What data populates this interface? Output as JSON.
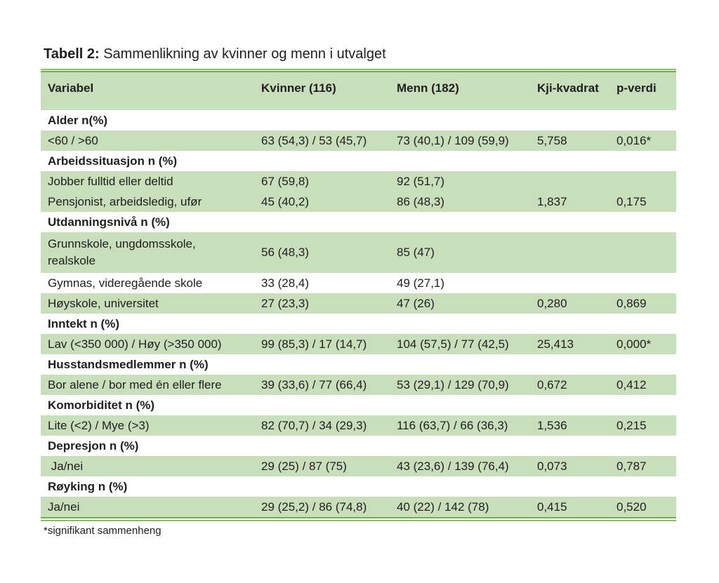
{
  "page": {
    "title_label": "Tabell 2:",
    "title_text": " Sammenlikning av kvinner og menn i utvalget",
    "footnote": "*signifikant sammenheng"
  },
  "colors": {
    "row_green": "#c9dfbc",
    "rule_green_dark": "#70ad47",
    "rule_green_light": "#8ac065",
    "text": "#202020"
  },
  "table": {
    "columns": [
      "Variabel",
      "Kvinner (116)",
      "Menn (182)",
      "Kji-kvadrat",
      "p-verdi"
    ],
    "rows": [
      {
        "type": "section",
        "label": "Alder n(%)"
      },
      {
        "type": "data",
        "shaded": true,
        "tall": false,
        "cells": [
          "<60 / >60",
          "63 (54,3) / 53 (45,7)",
          "73 (40,1) / 109 (59,9)",
          "5,758",
          "0,016*"
        ]
      },
      {
        "type": "section",
        "label": "Arbeidssituasjon n (%)"
      },
      {
        "type": "data",
        "shaded": true,
        "tall": false,
        "cells": [
          "Jobber fulltid eller deltid",
          "67 (59,8)",
          "92 (51,7)",
          "",
          ""
        ]
      },
      {
        "type": "data",
        "shaded": true,
        "tall": false,
        "cells": [
          "Pensjonist, arbeidsledig, ufør",
          "45 (40,2)",
          "86 (48,3)",
          "1,837",
          "0,175"
        ]
      },
      {
        "type": "section",
        "label": "Utdanningsnivå n (%)"
      },
      {
        "type": "data",
        "shaded": true,
        "tall": true,
        "cells": [
          "Grunnskole, ungdomsskole,\nrealskole",
          "56 (48,3)",
          "85 (47)",
          "",
          ""
        ]
      },
      {
        "type": "data",
        "shaded": false,
        "tall": false,
        "cells": [
          "Gymnas, videregående skole",
          "33 (28,4)",
          "49 (27,1)",
          "",
          ""
        ]
      },
      {
        "type": "data",
        "shaded": true,
        "tall": false,
        "cells": [
          "Høyskole, universitet",
          "27 (23,3)",
          "47 (26)",
          "0,280",
          "0,869"
        ]
      },
      {
        "type": "section",
        "label": "Inntekt n (%)"
      },
      {
        "type": "data",
        "shaded": true,
        "tall": false,
        "cells": [
          "Lav (<350 000) / Høy (>350 000)",
          "99 (85,3) / 17 (14,7)",
          "104 (57,5) / 77 (42,5)",
          "25,413",
          "0,000*"
        ]
      },
      {
        "type": "section",
        "label": "Husstandsmedlemmer n (%)"
      },
      {
        "type": "data",
        "shaded": true,
        "tall": false,
        "cells": [
          "Bor alene / bor med én eller flere",
          "39 (33,6) / 77 (66,4)",
          "53 (29,1) / 129 (70,9)",
          "0,672",
          "0,412"
        ]
      },
      {
        "type": "section",
        "label": "Komorbiditet n (%)"
      },
      {
        "type": "data",
        "shaded": true,
        "tall": false,
        "cells": [
          "Lite (<2) / Mye (>3)",
          "82 (70,7) / 34 (29,3)",
          "116 (63,7) / 66 (36,3)",
          "1,536",
          "0,215"
        ]
      },
      {
        "type": "section",
        "label": "Depresjon n (%)"
      },
      {
        "type": "data",
        "shaded": true,
        "tall": false,
        "cells": [
          " Ja/nei",
          "29 (25) / 87 (75)",
          "43 (23,6) / 139 (76,4)",
          "0,073",
          "0,787"
        ]
      },
      {
        "type": "section",
        "label": "Røyking n (%)"
      },
      {
        "type": "data",
        "shaded": true,
        "tall": false,
        "cells": [
          "Ja/nei",
          "29 (25,2) / 86 (74,8)",
          "40 (22) / 142 (78)",
          "0,415",
          "0,520"
        ]
      }
    ]
  }
}
